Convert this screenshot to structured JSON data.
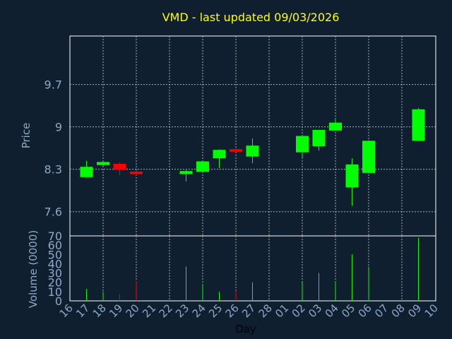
{
  "chart_data": {
    "type": "candlestick",
    "title": "VMD - last updated 09/03/2026",
    "xlabel": "Day",
    "ylabel": "Price",
    "volume_label": "Volume (0000)",
    "x_ticks": [
      "16",
      "17",
      "18",
      "19",
      "20",
      "21",
      "22",
      "23",
      "24",
      "25",
      "26",
      "27",
      "28",
      "01",
      "02",
      "03",
      "04",
      "05",
      "06",
      "07",
      "08",
      "09",
      "10"
    ],
    "price_ticks": [
      7.6,
      8.3,
      9,
      9.7
    ],
    "price_tick_labels": [
      "7.6",
      "8.3",
      "9",
      "9.7"
    ],
    "price_range": [
      7.2,
      10.5
    ],
    "volume_ticks": [
      0,
      10,
      20,
      30,
      40,
      50,
      60,
      70
    ],
    "volume_range": [
      0,
      70
    ],
    "grid": true,
    "colors": {
      "background": "#0f1f30",
      "plot_border": "#ffffff",
      "grid": "#c8c8c8",
      "up": "#00ff00",
      "down": "#ff0000",
      "title": "#ffff00",
      "axis_text": "#8fa8c8"
    },
    "candles": [
      {
        "day": "17",
        "open": 8.17,
        "close": 8.34,
        "high": 8.44,
        "low": 8.17
      },
      {
        "day": "18",
        "open": 8.37,
        "close": 8.42,
        "high": 8.44,
        "low": 8.35
      },
      {
        "day": "19",
        "open": 8.39,
        "close": 8.29,
        "high": 8.41,
        "low": 8.2
      },
      {
        "day": "20",
        "open": 8.26,
        "close": 8.22,
        "high": 8.28,
        "low": 8.2
      },
      {
        "day": "23",
        "open": 8.22,
        "close": 8.27,
        "high": 8.29,
        "low": 8.1
      },
      {
        "day": "24",
        "open": 8.26,
        "close": 8.43,
        "high": 8.44,
        "low": 8.26
      },
      {
        "day": "25",
        "open": 8.48,
        "close": 8.62,
        "high": 8.63,
        "low": 8.32
      },
      {
        "day": "26",
        "open": 8.63,
        "close": 8.59,
        "high": 8.66,
        "low": 8.58
      },
      {
        "day": "27",
        "open": 8.51,
        "close": 8.69,
        "high": 8.81,
        "low": 8.4
      },
      {
        "day": "02",
        "open": 8.58,
        "close": 8.85,
        "high": 8.87,
        "low": 8.48
      },
      {
        "day": "03",
        "open": 8.68,
        "close": 8.95,
        "high": 8.95,
        "low": 8.61
      },
      {
        "day": "04",
        "open": 8.94,
        "close": 9.07,
        "high": 9.15,
        "low": 8.94
      },
      {
        "day": "05",
        "open": 8.0,
        "close": 8.38,
        "high": 8.48,
        "low": 7.7
      },
      {
        "day": "06",
        "open": 8.24,
        "close": 8.77,
        "high": 8.78,
        "low": 8.24
      },
      {
        "day": "09",
        "open": 8.77,
        "close": 9.29,
        "high": 9.31,
        "low": 8.77
      }
    ],
    "volume": [
      {
        "day": "17",
        "value": 13,
        "direction": "up"
      },
      {
        "day": "18",
        "value": 10,
        "direction": "up"
      },
      {
        "day": "19",
        "value": 7,
        "direction": "down"
      },
      {
        "day": "20",
        "value": 21,
        "direction": "down"
      },
      {
        "day": "23",
        "value": 37,
        "direction": "up"
      },
      {
        "day": "24",
        "value": 18,
        "direction": "up"
      },
      {
        "day": "25",
        "value": 10,
        "direction": "up"
      },
      {
        "day": "26",
        "value": 11,
        "direction": "down"
      },
      {
        "day": "27",
        "value": 20,
        "direction": "up"
      },
      {
        "day": "02",
        "value": 20,
        "direction": "up"
      },
      {
        "day": "03",
        "value": 30,
        "direction": "up"
      },
      {
        "day": "04",
        "value": 21,
        "direction": "up"
      },
      {
        "day": "05",
        "value": 50,
        "direction": "up"
      },
      {
        "day": "06",
        "value": 37,
        "direction": "up"
      },
      {
        "day": "09",
        "value": 68,
        "direction": "up"
      }
    ]
  }
}
